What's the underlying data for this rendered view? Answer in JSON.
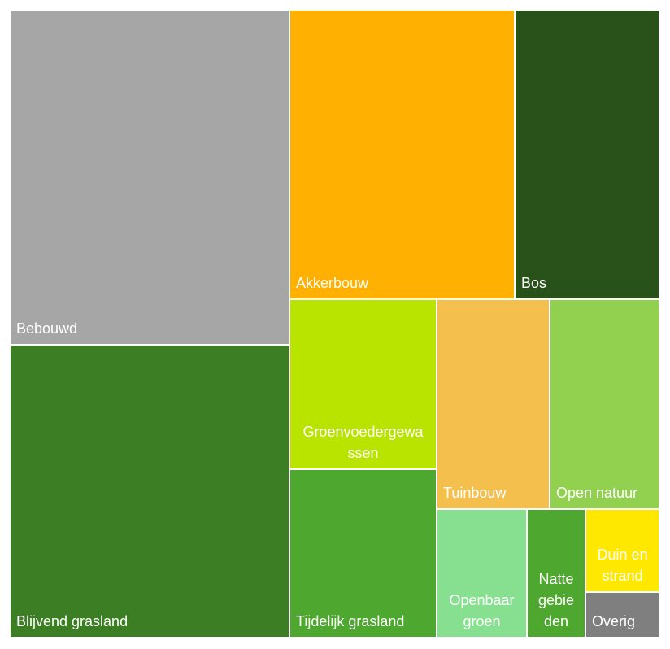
{
  "chart_data": {
    "type": "treemap",
    "title": "",
    "unit": "",
    "items": [
      {
        "name": "Bebouwd",
        "label_lines": [
          "Bebouwd"
        ],
        "color": "#A6A6A6"
      },
      {
        "name": "Blijvend grasland",
        "label_lines": [
          "Blijvend grasland"
        ],
        "color": "#3B7E23"
      },
      {
        "name": "Akkerbouw",
        "label_lines": [
          "Akkerbouw"
        ],
        "color": "#FFB000"
      },
      {
        "name": "Bos",
        "label_lines": [
          "Bos"
        ],
        "color": "#285219"
      },
      {
        "name": "Groenvoedergewassen",
        "label_lines": [
          "Groenvoedergewa",
          "ssen"
        ],
        "color": "#B8E400"
      },
      {
        "name": "Tijdelijk grasland",
        "label_lines": [
          "Tijdelijk grasland"
        ],
        "color": "#4EA72E"
      },
      {
        "name": "Tuinbouw",
        "label_lines": [
          "Tuinbouw"
        ],
        "color": "#F4BF4C"
      },
      {
        "name": "Open natuur",
        "label_lines": [
          "Open natuur"
        ],
        "color": "#92D050"
      },
      {
        "name": "Openbaar groen",
        "label_lines": [
          "Openbaar",
          "groen"
        ],
        "color": "#86E08F"
      },
      {
        "name": "Natte gebieden",
        "label_lines": [
          "Natte",
          "gebie",
          "den"
        ],
        "color": "#4EA72E"
      },
      {
        "name": "Duin en strand",
        "label_lines": [
          "Duin en",
          "strand"
        ],
        "color": "#FFE800"
      },
      {
        "name": "Overig",
        "label_lines": [
          "Overig"
        ],
        "color": "#7F7F7F"
      }
    ]
  }
}
